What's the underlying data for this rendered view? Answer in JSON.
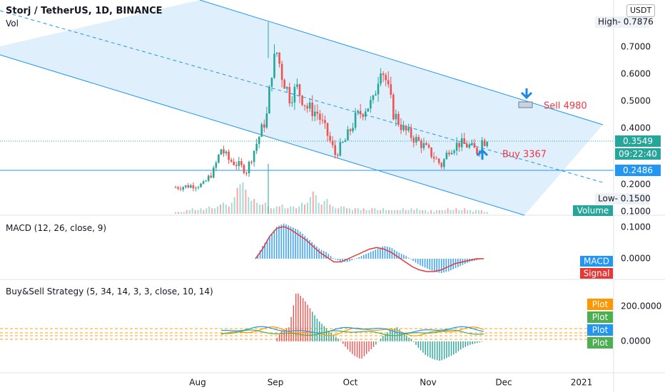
{
  "header": {
    "title": "Storj / TetherUS, 1D, BINANCE",
    "vol_label": "Vol",
    "currency_button": "USDT"
  },
  "price_pane": {
    "y_ticks": [
      "0.7000",
      "0.6000",
      "0.5000",
      "0.4000",
      "0.3000",
      "0.2000",
      "0.1000"
    ],
    "high_label": "High",
    "high_value": "0.7876",
    "low_label": "Low",
    "low_value": "0.1500",
    "current_price": "0.3549",
    "countdown": "09:22:40",
    "level_price": "0.2486",
    "volume_label": "Volume",
    "sell_annotation": "Sell 4980",
    "buy_annotation": "Buy 3367"
  },
  "macd_pane": {
    "title": "MACD (12, 26, close, 9)",
    "y_ticks": [
      "0.1000",
      "0.0000"
    ],
    "macd_label": "MACD",
    "signal_label": "Signal"
  },
  "strategy_pane": {
    "title": "Buy&Sell Strategy (5, 34, 14, 3, 3, close, 10, 14)",
    "y_ticks": [
      "200.0000",
      "0.0000"
    ],
    "plot_labels": [
      "Plot",
      "Plot",
      "Plot",
      "Plot"
    ]
  },
  "x_axis": {
    "labels": [
      "Aug",
      "Sep",
      "Oct",
      "Nov",
      "Dec",
      "2021"
    ]
  },
  "colors": {
    "up": "#26a69a",
    "down": "#ef5350",
    "channel": "#2196f3",
    "channel_fill": "#dbeefc",
    "macd": "#2196f3",
    "signal": "#e53935",
    "sell_text": "#f23645",
    "plot_orange": "#ff9800",
    "plot_green": "#4caf50",
    "plot_blue": "#2196f3"
  },
  "chart_data": {
    "type": "candlestick",
    "symbol": "Storj / TetherUS",
    "interval": "1D",
    "exchange": "BINANCE",
    "x_labels": [
      "Aug",
      "Sep",
      "Oct",
      "Nov",
      "Dec",
      "2021"
    ],
    "ylim": [
      0.1,
      0.78
    ],
    "close_path": [
      {
        "date": "2020-07-23",
        "close": 0.19
      },
      {
        "date": "2020-07-28",
        "close": 0.195
      },
      {
        "date": "2020-08-03",
        "close": 0.2
      },
      {
        "date": "2020-08-07",
        "close": 0.25
      },
      {
        "date": "2020-08-10",
        "close": 0.33
      },
      {
        "date": "2020-08-13",
        "close": 0.29
      },
      {
        "date": "2020-08-17",
        "close": 0.27
      },
      {
        "date": "2020-08-20",
        "close": 0.25
      },
      {
        "date": "2020-08-24",
        "close": 0.35
      },
      {
        "date": "2020-08-28",
        "close": 0.45
      },
      {
        "date": "2020-08-30",
        "close": 0.62
      },
      {
        "date": "2020-09-01",
        "close": 0.68
      },
      {
        "date": "2020-09-03",
        "close": 0.6
      },
      {
        "date": "2020-09-06",
        "close": 0.52
      },
      {
        "date": "2020-09-09",
        "close": 0.55
      },
      {
        "date": "2020-09-13",
        "close": 0.48
      },
      {
        "date": "2020-09-17",
        "close": 0.46
      },
      {
        "date": "2020-09-21",
        "close": 0.38
      },
      {
        "date": "2020-09-24",
        "close": 0.31
      },
      {
        "date": "2020-09-28",
        "close": 0.36
      },
      {
        "date": "2020-10-02",
        "close": 0.44
      },
      {
        "date": "2020-10-06",
        "close": 0.48
      },
      {
        "date": "2020-10-09",
        "close": 0.5
      },
      {
        "date": "2020-10-12",
        "close": 0.64
      },
      {
        "date": "2020-10-14",
        "close": 0.58
      },
      {
        "date": "2020-10-17",
        "close": 0.46
      },
      {
        "date": "2020-10-21",
        "close": 0.4
      },
      {
        "date": "2020-10-25",
        "close": 0.37
      },
      {
        "date": "2020-10-29",
        "close": 0.34
      },
      {
        "date": "2020-11-02",
        "close": 0.3
      },
      {
        "date": "2020-11-05",
        "close": 0.27
      },
      {
        "date": "2020-11-08",
        "close": 0.33
      },
      {
        "date": "2020-11-12",
        "close": 0.35
      },
      {
        "date": "2020-11-16",
        "close": 0.34
      },
      {
        "date": "2020-11-19",
        "close": 0.32
      },
      {
        "date": "2020-11-21",
        "close": 0.36
      },
      {
        "date": "2020-11-23",
        "close": 0.3549
      }
    ],
    "volume": [
      1,
      1,
      1,
      1,
      2,
      2,
      3,
      2,
      2,
      3,
      2,
      3,
      4,
      3,
      3,
      4,
      5,
      6,
      5,
      4,
      6,
      9,
      14,
      16,
      17,
      13,
      9,
      7,
      8,
      6,
      5,
      5,
      6,
      4,
      3,
      3,
      4,
      4,
      5,
      3,
      3,
      4,
      4,
      3,
      4,
      6,
      5,
      6,
      9,
      12,
      10,
      6,
      5,
      7,
      8,
      5,
      4,
      3,
      3,
      4,
      4,
      3,
      3,
      2,
      3,
      3,
      2,
      3,
      2,
      2,
      3,
      3,
      2,
      2,
      3,
      2,
      2,
      2,
      2,
      2,
      2,
      3,
      2,
      2,
      3,
      2,
      3,
      2,
      2,
      2,
      1,
      2,
      1,
      2,
      2,
      2,
      2,
      3,
      2,
      2,
      3,
      2,
      2,
      3,
      2,
      2,
      1,
      2,
      2,
      2,
      1,
      1
    ],
    "macd": [
      0.0,
      0.04,
      0.07,
      0.1,
      0.11,
      0.1,
      0.09,
      0.07,
      0.05,
      0.03,
      0.02,
      0.0,
      -0.01,
      -0.01,
      0.0,
      0.01,
      0.02,
      0.03,
      0.04,
      0.035,
      0.02,
      0.01,
      -0.005,
      -0.02,
      -0.03,
      -0.04,
      -0.045,
      -0.04,
      -0.03,
      -0.02,
      -0.01,
      -0.005,
      0.0
    ],
    "macd_signal": [
      0.0,
      0.03,
      0.07,
      0.095,
      0.1,
      0.09,
      0.075,
      0.06,
      0.04,
      0.02,
      0.005,
      -0.01,
      -0.01,
      0.0,
      0.01,
      0.02,
      0.03,
      0.035,
      0.03,
      0.02,
      0.005,
      -0.01,
      -0.025,
      -0.035,
      -0.04,
      -0.04,
      -0.035,
      -0.025,
      -0.015,
      -0.01,
      -0.005,
      0.0,
      0.0
    ],
    "strategy_osc": [
      0,
      60,
      80,
      280,
      240,
      180,
      120,
      80,
      40,
      10,
      -40,
      -80,
      -100,
      -60,
      -20,
      30,
      60,
      80,
      40,
      10,
      -40,
      -80,
      -100,
      -110,
      -90,
      -70,
      -40,
      -20,
      -10,
      0
    ],
    "strategy_y_ticks": [
      200,
      0
    ],
    "channel": {
      "type": "descending parallel channel",
      "upper": "resistance",
      "lower": "support"
    },
    "annotations": [
      {
        "text": "Sell 4980",
        "type": "sell"
      },
      {
        "text": "Buy 3367",
        "type": "buy"
      }
    ]
  }
}
